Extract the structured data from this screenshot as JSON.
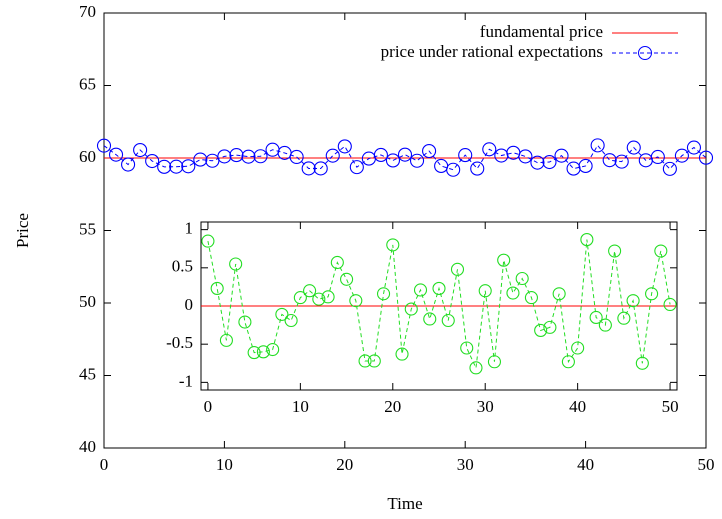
{
  "chart_data": [
    {
      "type": "line",
      "xlabel": "Time",
      "ylabel": "Price",
      "xlim": [
        0,
        50
      ],
      "ylim": [
        40,
        70
      ],
      "xticks": [
        0,
        10,
        20,
        30,
        40,
        50
      ],
      "yticks": [
        40,
        45,
        50,
        55,
        60,
        65,
        70
      ],
      "legend": "top right",
      "series": [
        {
          "name": "fundamental price",
          "color": "#ff0000",
          "marker": "none",
          "dashed": false,
          "x": [
            0,
            50
          ],
          "values": [
            60,
            60
          ]
        },
        {
          "name": "price under rational expectations",
          "color": "#0000ff",
          "marker": "circle",
          "dashed": true,
          "x": [
            0,
            1,
            2,
            3,
            4,
            5,
            6,
            7,
            8,
            9,
            10,
            11,
            12,
            13,
            14,
            15,
            16,
            17,
            18,
            19,
            20,
            21,
            22,
            23,
            24,
            25,
            26,
            27,
            28,
            29,
            30,
            31,
            32,
            33,
            34,
            35,
            36,
            37,
            38,
            39,
            40,
            41,
            42,
            43,
            44,
            45,
            46,
            47,
            48,
            49,
            50
          ],
          "values": [
            60.85,
            60.23,
            59.55,
            60.55,
            59.79,
            59.39,
            59.4,
            59.43,
            59.89,
            59.81,
            60.11,
            60.2,
            60.09,
            60.12,
            60.57,
            60.35,
            60.07,
            59.28,
            59.28,
            60.16,
            60.8,
            59.37,
            59.96,
            60.21,
            59.83,
            60.23,
            59.81,
            60.48,
            59.45,
            59.19,
            60.2,
            59.27,
            60.6,
            60.17,
            60.36,
            60.11,
            59.68,
            59.72,
            60.16,
            59.27,
            59.45,
            60.87,
            59.85,
            59.75,
            60.72,
            59.84,
            60.07,
            59.25,
            60.16,
            60.72,
            60.02
          ]
        }
      ]
    },
    {
      "type": "line",
      "xlim": [
        -0.75,
        50.75
      ],
      "ylim": [
        -1.1,
        1.1
      ],
      "xticks": [
        0,
        10,
        20,
        30,
        40,
        50
      ],
      "yticks": [
        -1,
        -0.5,
        0,
        0.5,
        1
      ],
      "series": [
        {
          "color": "#ff0000",
          "marker": "none",
          "dashed": false,
          "x": [
            -0.75,
            50.75
          ],
          "values": [
            0,
            0
          ]
        },
        {
          "color": "#22dd22",
          "marker": "circle",
          "dashed": true,
          "x": [
            0,
            1,
            2,
            3,
            4,
            5,
            6,
            7,
            8,
            9,
            10,
            11,
            12,
            13,
            14,
            15,
            16,
            17,
            18,
            19,
            20,
            21,
            22,
            23,
            24,
            25,
            26,
            27,
            28,
            29,
            30,
            31,
            32,
            33,
            34,
            35,
            36,
            37,
            38,
            39,
            40,
            41,
            42,
            43,
            44,
            45,
            46,
            47,
            48,
            49,
            50
          ],
          "values": [
            0.85,
            0.23,
            -0.45,
            0.55,
            -0.21,
            -0.61,
            -0.6,
            -0.57,
            -0.11,
            -0.19,
            0.11,
            0.2,
            0.09,
            0.12,
            0.57,
            0.35,
            0.07,
            -0.72,
            -0.72,
            0.16,
            0.8,
            -0.63,
            -0.04,
            0.21,
            -0.17,
            0.23,
            -0.19,
            0.48,
            -0.55,
            -0.81,
            0.2,
            -0.73,
            0.6,
            0.17,
            0.36,
            0.11,
            -0.32,
            -0.28,
            0.16,
            -0.73,
            -0.55,
            0.87,
            -0.15,
            -0.25,
            0.72,
            -0.16,
            0.07,
            -0.75,
            0.16,
            0.72,
            0.02
          ]
        }
      ]
    }
  ]
}
